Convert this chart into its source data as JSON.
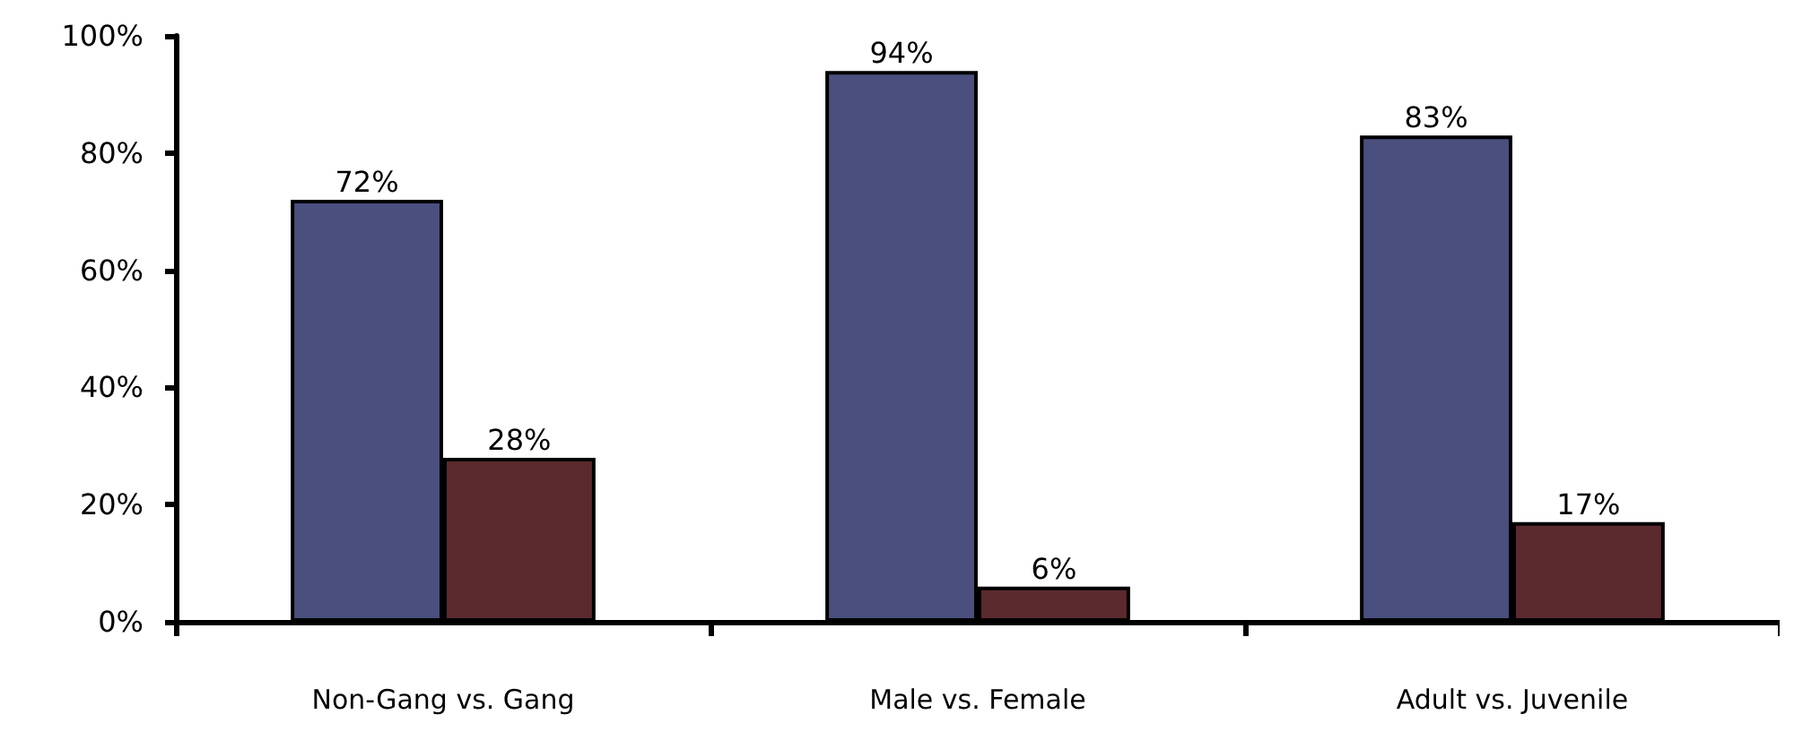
{
  "chart_data": {
    "type": "bar",
    "categories": [
      "Non-Gang vs. Gang",
      "Male vs. Female",
      "Adult vs. Juvenile"
    ],
    "series": [
      {
        "color": "#4a4f7e",
        "values": [
          72,
          94,
          83
        ],
        "value_labels": [
          "72%",
          "94%",
          "83%"
        ]
      },
      {
        "color": "#5a2a2e",
        "values": [
          28,
          6,
          17
        ],
        "value_labels": [
          "28%",
          "6%",
          "17%"
        ]
      }
    ],
    "ylim": [
      0,
      100
    ],
    "yticks": [
      {
        "value": 0,
        "label": "0%"
      },
      {
        "value": 20,
        "label": "20%"
      },
      {
        "value": 40,
        "label": "40%"
      },
      {
        "value": 60,
        "label": "60%"
      },
      {
        "value": 80,
        "label": "80%"
      },
      {
        "value": 100,
        "label": "100%"
      }
    ],
    "grid": false
  }
}
